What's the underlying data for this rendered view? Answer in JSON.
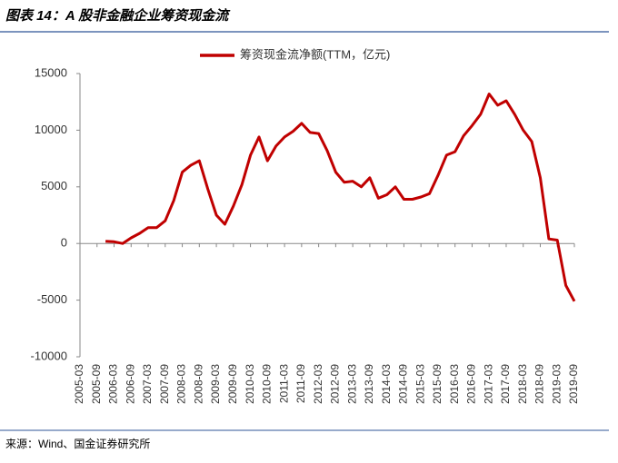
{
  "header": {
    "title": "图表 14：A 股非金融企业筹资现金流"
  },
  "source": "来源：Wind、国金证券研究所",
  "chart_data": {
    "type": "line",
    "categories": [
      "2005-03",
      null,
      "2005-09",
      null,
      "2006-03",
      null,
      "2006-09",
      null,
      "2007-03",
      null,
      "2007-09",
      null,
      "2008-03",
      null,
      "2008-09",
      null,
      "2009-03",
      null,
      "2009-09",
      null,
      "2010-03",
      null,
      "2010-09",
      null,
      "2011-03",
      null,
      "2011-09",
      null,
      "2012-03",
      null,
      "2012-09",
      null,
      "2013-03",
      null,
      "2013-09",
      null,
      "2014-03",
      null,
      "2014-09",
      null,
      "2015-03",
      null,
      "2015-09",
      null,
      "2016-03",
      null,
      "2016-09",
      null,
      "2017-03",
      null,
      "2017-09",
      null,
      "2018-03",
      null,
      "2018-09",
      null,
      "2019-03",
      null,
      "2019-09"
    ],
    "series": [
      {
        "name": "筹资现金流净额(TTM，亿元)",
        "color": "#c00000",
        "values": [
          null,
          null,
          null,
          200,
          150,
          0,
          500,
          900,
          1400,
          1400,
          2000,
          3800,
          6300,
          6900,
          7300,
          4800,
          2500,
          1700,
          3300,
          5200,
          7800,
          9400,
          7300,
          8600,
          9400,
          9900,
          10600,
          9800,
          9700,
          8200,
          6300,
          5400,
          5500,
          5000,
          5800,
          4000,
          4300,
          5000,
          3900,
          3900,
          4100,
          4400,
          6000,
          7800,
          8100,
          9500,
          10400,
          11400,
          13200,
          12200,
          12600,
          11400,
          10000,
          9000,
          5800,
          400,
          300,
          -3700,
          -5100
        ]
      }
    ],
    "ylim": [
      -10000,
      15000
    ],
    "yticks": [
      -10000,
      -5000,
      0,
      5000,
      10000,
      15000
    ],
    "legend": "top"
  }
}
